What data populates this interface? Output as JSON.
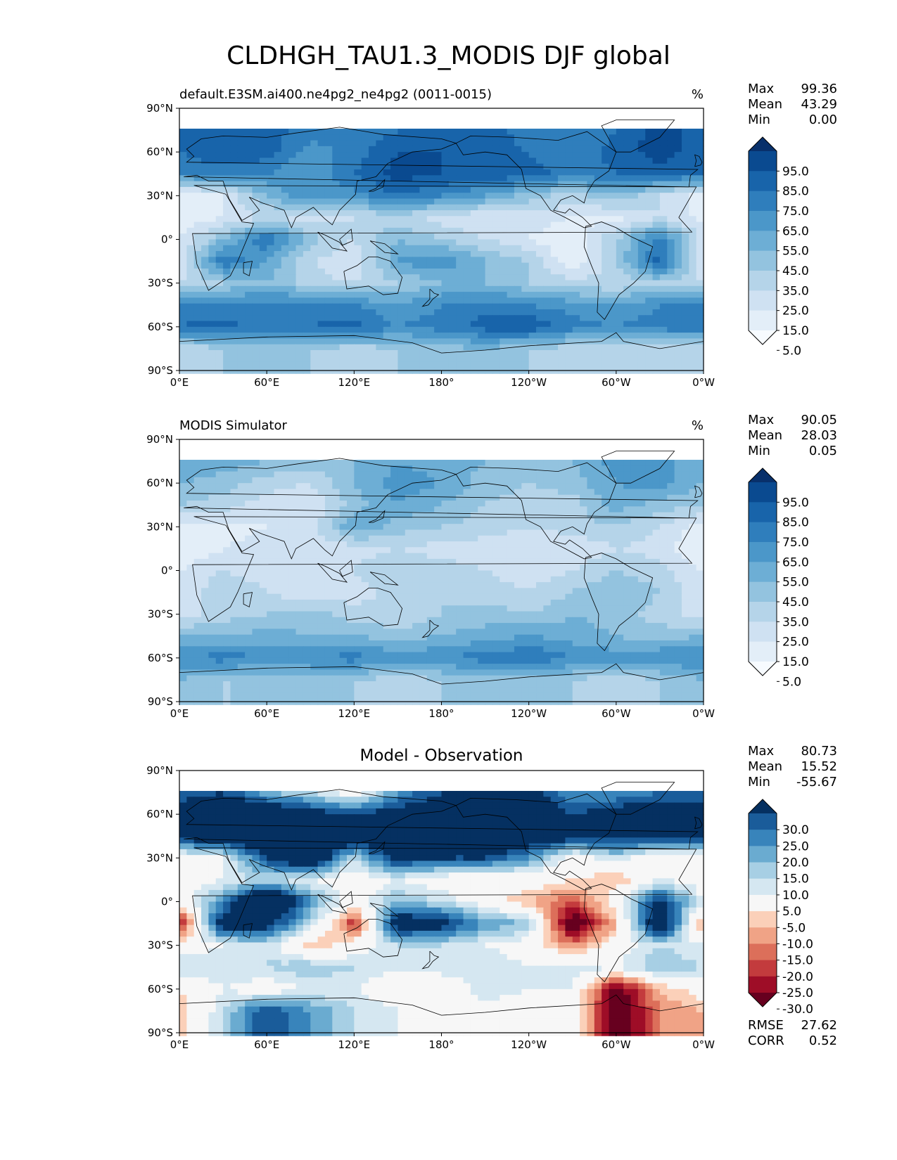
{
  "figure": {
    "title": "CLDHGH_TAU1.3_MODIS DJF global",
    "panels": [
      {
        "id": "test",
        "title_left": "default.E3SM.ai400.ne4pg2_ne4pg2 (0011-0015)",
        "title_center": "",
        "units": "%",
        "stats": [
          {
            "label": "Max",
            "value": "99.36"
          },
          {
            "label": "Mean",
            "value": "43.29"
          },
          {
            "label": "Min",
            "value": "0.00"
          }
        ],
        "colorbar_labels": [
          "95.0",
          "85.0",
          "75.0",
          "65.0",
          "55.0",
          "45.0",
          "35.0",
          "25.0",
          "15.0",
          "5.0"
        ],
        "colormap": [
          "#f7fbff",
          "#e3eef8",
          "#cfe1f2",
          "#b5d4e9",
          "#93c3df",
          "#6daed5",
          "#4b97c9",
          "#2f7ebc",
          "#1864aa",
          "#0a4a90",
          "#08306b"
        ],
        "footer_stats": []
      },
      {
        "id": "ref",
        "title_left": "MODIS Simulator",
        "title_center": "",
        "units": "%",
        "stats": [
          {
            "label": "Max",
            "value": "90.05"
          },
          {
            "label": "Mean",
            "value": "28.03"
          },
          {
            "label": "Min",
            "value": "0.05"
          }
        ],
        "colorbar_labels": [
          "95.0",
          "85.0",
          "75.0",
          "65.0",
          "55.0",
          "45.0",
          "35.0",
          "25.0",
          "15.0",
          "5.0"
        ],
        "colormap": [
          "#f7fbff",
          "#e3eef8",
          "#cfe1f2",
          "#b5d4e9",
          "#93c3df",
          "#6daed5",
          "#4b97c9",
          "#2f7ebc",
          "#1864aa",
          "#0a4a90",
          "#08306b"
        ],
        "footer_stats": []
      },
      {
        "id": "diff",
        "title_left": "",
        "title_center": "Model - Observation",
        "units": "",
        "stats": [
          {
            "label": "Max",
            "value": "80.73"
          },
          {
            "label": "Mean",
            "value": "15.52"
          },
          {
            "label": "Min",
            "value": "-55.67"
          }
        ],
        "colorbar_labels": [
          "30.0",
          "25.0",
          "20.0",
          "15.0",
          "10.0",
          "5.0",
          "-5.0",
          "-10.0",
          "-15.0",
          "-20.0",
          "-25.0",
          "-30.0"
        ],
        "colormap": [
          "#67001f",
          "#9e0d27",
          "#c33b3d",
          "#dc6f5a",
          "#f0a386",
          "#fbd0b9",
          "#f7f7f7",
          "#d5e7f1",
          "#a7cfe4",
          "#6aabd0",
          "#3884bb",
          "#1a5c9a",
          "#053061"
        ],
        "footer_stats": [
          {
            "label": "RMSE",
            "value": "27.62"
          },
          {
            "label": "CORR",
            "value": "0.52"
          }
        ]
      }
    ]
  },
  "chart_data": [
    {
      "type": "heatmap",
      "title": "default.E3SM.ai400.ne4pg2_ne4pg2 (0011-0015)",
      "units": "%",
      "x_ticks": [
        "0°E",
        "60°E",
        "120°E",
        "180°",
        "120°W",
        "60°W",
        "0°W"
      ],
      "y_ticks": [
        "90°N",
        "60°N",
        "30°N",
        "0°",
        "30°S",
        "60°S",
        "90°S"
      ],
      "lon_range": [
        0,
        360
      ],
      "lat_range": [
        -90,
        90
      ],
      "levels": [
        5,
        15,
        25,
        35,
        45,
        55,
        65,
        75,
        85,
        95
      ],
      "max": 99.36,
      "mean": 43.29,
      "min": 0.0,
      "lats": [
        75,
        60,
        45,
        30,
        15,
        0,
        -15,
        -30,
        -45,
        -60,
        -75
      ],
      "lons": [
        0,
        30,
        60,
        90,
        120,
        150,
        180,
        210,
        240,
        270,
        300,
        330,
        360
      ],
      "values": [
        [
          75,
          85,
          80,
          70,
          65,
          75,
          80,
          80,
          70,
          65,
          75,
          90,
          80
        ],
        [
          75,
          85,
          80,
          60,
          70,
          85,
          85,
          80,
          75,
          65,
          80,
          90,
          80
        ],
        [
          65,
          70,
          65,
          55,
          75,
          90,
          85,
          85,
          80,
          70,
          75,
          80,
          75
        ],
        [
          5,
          15,
          45,
          65,
          60,
          75,
          65,
          55,
          40,
          30,
          45,
          25,
          10
        ],
        [
          5,
          15,
          25,
          20,
          25,
          30,
          20,
          15,
          20,
          15,
          10,
          25,
          10
        ],
        [
          15,
          45,
          75,
          40,
          25,
          45,
          35,
          25,
          15,
          5,
          35,
          70,
          20
        ],
        [
          15,
          75,
          55,
          25,
          15,
          55,
          65,
          45,
          35,
          5,
          35,
          80,
          15
        ],
        [
          25,
          35,
          45,
          30,
          25,
          35,
          45,
          45,
          35,
          30,
          25,
          35,
          25
        ],
        [
          70,
          65,
          70,
          70,
          65,
          55,
          65,
          70,
          65,
          60,
          55,
          65,
          70
        ],
        [
          75,
          80,
          70,
          75,
          80,
          65,
          70,
          80,
          85,
          70,
          65,
          70,
          75
        ],
        [
          25,
          35,
          40,
          35,
          30,
          35,
          40,
          45,
          35,
          30,
          25,
          30,
          25
        ]
      ]
    },
    {
      "type": "heatmap",
      "title": "MODIS Simulator",
      "units": "%",
      "x_ticks": [
        "0°E",
        "60°E",
        "120°E",
        "180°",
        "120°W",
        "60°W",
        "0°W"
      ],
      "y_ticks": [
        "90°N",
        "60°N",
        "30°N",
        "0°",
        "30°S",
        "60°S",
        "90°S"
      ],
      "lon_range": [
        0,
        360
      ],
      "lat_range": [
        -90,
        90
      ],
      "levels": [
        5,
        15,
        25,
        35,
        45,
        55,
        65,
        75,
        85,
        95
      ],
      "max": 90.05,
      "mean": 28.03,
      "min": 0.05,
      "lats": [
        75,
        60,
        45,
        30,
        15,
        0,
        -15,
        -30,
        -45,
        -60,
        -75
      ],
      "lons": [
        0,
        30,
        60,
        90,
        120,
        150,
        180,
        210,
        240,
        270,
        300,
        330,
        360
      ],
      "values": [
        [
          55,
          50,
          45,
          40,
          45,
          55,
          50,
          45,
          40,
          45,
          60,
          55,
          55
        ],
        [
          45,
          40,
          30,
          25,
          45,
          60,
          55,
          40,
          35,
          40,
          55,
          60,
          45
        ],
        [
          35,
          30,
          20,
          15,
          40,
          55,
          45,
          35,
          30,
          30,
          50,
          40,
          35
        ],
        [
          10,
          10,
          15,
          20,
          55,
          40,
          35,
          30,
          25,
          30,
          35,
          25,
          10
        ],
        [
          5,
          15,
          20,
          15,
          20,
          25,
          20,
          20,
          15,
          15,
          25,
          20,
          5
        ],
        [
          15,
          25,
          20,
          15,
          25,
          35,
          30,
          25,
          20,
          25,
          35,
          30,
          15
        ],
        [
          15,
          35,
          25,
          15,
          20,
          30,
          35,
          30,
          25,
          35,
          45,
          35,
          15
        ],
        [
          20,
          30,
          35,
          40,
          30,
          25,
          35,
          40,
          35,
          45,
          40,
          30,
          20
        ],
        [
          45,
          45,
          50,
          45,
          45,
          40,
          45,
          50,
          55,
          50,
          45,
          40,
          45
        ],
        [
          65,
          70,
          65,
          65,
          70,
          60,
          65,
          70,
          75,
          65,
          60,
          65,
          65
        ],
        [
          45,
          35,
          35,
          40,
          35,
          30,
          35,
          40,
          40,
          35,
          30,
          35,
          45
        ]
      ]
    },
    {
      "type": "heatmap",
      "title": "Model - Observation",
      "units": "",
      "x_ticks": [
        "0°E",
        "60°E",
        "120°E",
        "180°",
        "120°W",
        "60°W",
        "0°W"
      ],
      "y_ticks": [
        "90°N",
        "60°N",
        "30°N",
        "0°",
        "30°S",
        "60°S",
        "90°S"
      ],
      "lon_range": [
        0,
        360
      ],
      "lat_range": [
        -90,
        90
      ],
      "levels": [
        -30,
        -25,
        -20,
        -15,
        -10,
        -5,
        5,
        10,
        15,
        20,
        25,
        30
      ],
      "max": 80.73,
      "mean": 15.52,
      "min": -55.67,
      "rmse": 27.62,
      "corr": 0.52,
      "lats": [
        75,
        60,
        45,
        30,
        15,
        0,
        -15,
        -30,
        -45,
        -60,
        -75
      ],
      "lons": [
        0,
        30,
        60,
        90,
        120,
        150,
        180,
        210,
        240,
        270,
        300,
        330,
        360
      ],
      "values": [
        [
          25,
          30,
          15,
          10,
          0,
          20,
          30,
          30,
          35,
          20,
          20,
          25,
          25
        ],
        [
          35,
          45,
          45,
          35,
          30,
          35,
          40,
          45,
          40,
          30,
          35,
          40,
          35
        ],
        [
          35,
          40,
          45,
          45,
          40,
          40,
          40,
          45,
          40,
          35,
          35,
          35,
          35
        ],
        [
          0,
          5,
          30,
          45,
          10,
          35,
          30,
          30,
          20,
          0,
          10,
          -5,
          0
        ],
        [
          0,
          5,
          10,
          5,
          0,
          5,
          0,
          -5,
          0,
          -5,
          -10,
          5,
          0
        ],
        [
          0,
          20,
          55,
          20,
          0,
          15,
          10,
          0,
          -10,
          -20,
          0,
          35,
          5
        ],
        [
          -30,
          40,
          35,
          10,
          -25,
          40,
          35,
          20,
          15,
          -40,
          -10,
          45,
          -15
        ],
        [
          0,
          5,
          10,
          -10,
          0,
          10,
          10,
          5,
          0,
          -15,
          0,
          10,
          5
        ],
        [
          10,
          10,
          10,
          15,
          10,
          5,
          10,
          10,
          5,
          10,
          5,
          15,
          10
        ],
        [
          -5,
          5,
          0,
          5,
          5,
          0,
          -5,
          10,
          5,
          5,
          -35,
          -10,
          0
        ],
        [
          -10,
          10,
          30,
          20,
          10,
          5,
          0,
          0,
          0,
          5,
          -40,
          -15,
          -10
        ]
      ]
    }
  ]
}
